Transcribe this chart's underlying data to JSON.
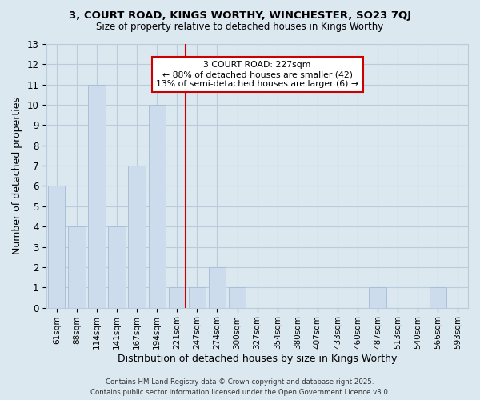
{
  "title": "3, COURT ROAD, KINGS WORTHY, WINCHESTER, SO23 7QJ",
  "subtitle": "Size of property relative to detached houses in Kings Worthy",
  "xlabel": "Distribution of detached houses by size in Kings Worthy",
  "ylabel": "Number of detached properties",
  "categories": [
    "61sqm",
    "88sqm",
    "114sqm",
    "141sqm",
    "167sqm",
    "194sqm",
    "221sqm",
    "247sqm",
    "274sqm",
    "300sqm",
    "327sqm",
    "354sqm",
    "380sqm",
    "407sqm",
    "433sqm",
    "460sqm",
    "487sqm",
    "513sqm",
    "540sqm",
    "566sqm",
    "593sqm"
  ],
  "values": [
    6,
    4,
    11,
    4,
    7,
    10,
    1,
    1,
    2,
    1,
    0,
    0,
    0,
    0,
    0,
    0,
    1,
    0,
    0,
    1,
    0
  ],
  "bar_color": "#ccdcec",
  "bar_edge_color": "#aac0d8",
  "highlight_index": 6,
  "highlight_color": "#cc0000",
  "ylim": [
    0,
    13
  ],
  "yticks": [
    0,
    1,
    2,
    3,
    4,
    5,
    6,
    7,
    8,
    9,
    10,
    11,
    12,
    13
  ],
  "annotation_title": "3 COURT ROAD: 227sqm",
  "annotation_line1": "← 88% of detached houses are smaller (42)",
  "annotation_line2": "13% of semi-detached houses are larger (6) →",
  "footer_line1": "Contains HM Land Registry data © Crown copyright and database right 2025.",
  "footer_line2": "Contains public sector information licensed under the Open Government Licence v3.0.",
  "bg_color": "#dce8f0",
  "plot_bg_color": "#dce8f0",
  "grid_color": "#b8ccdc"
}
